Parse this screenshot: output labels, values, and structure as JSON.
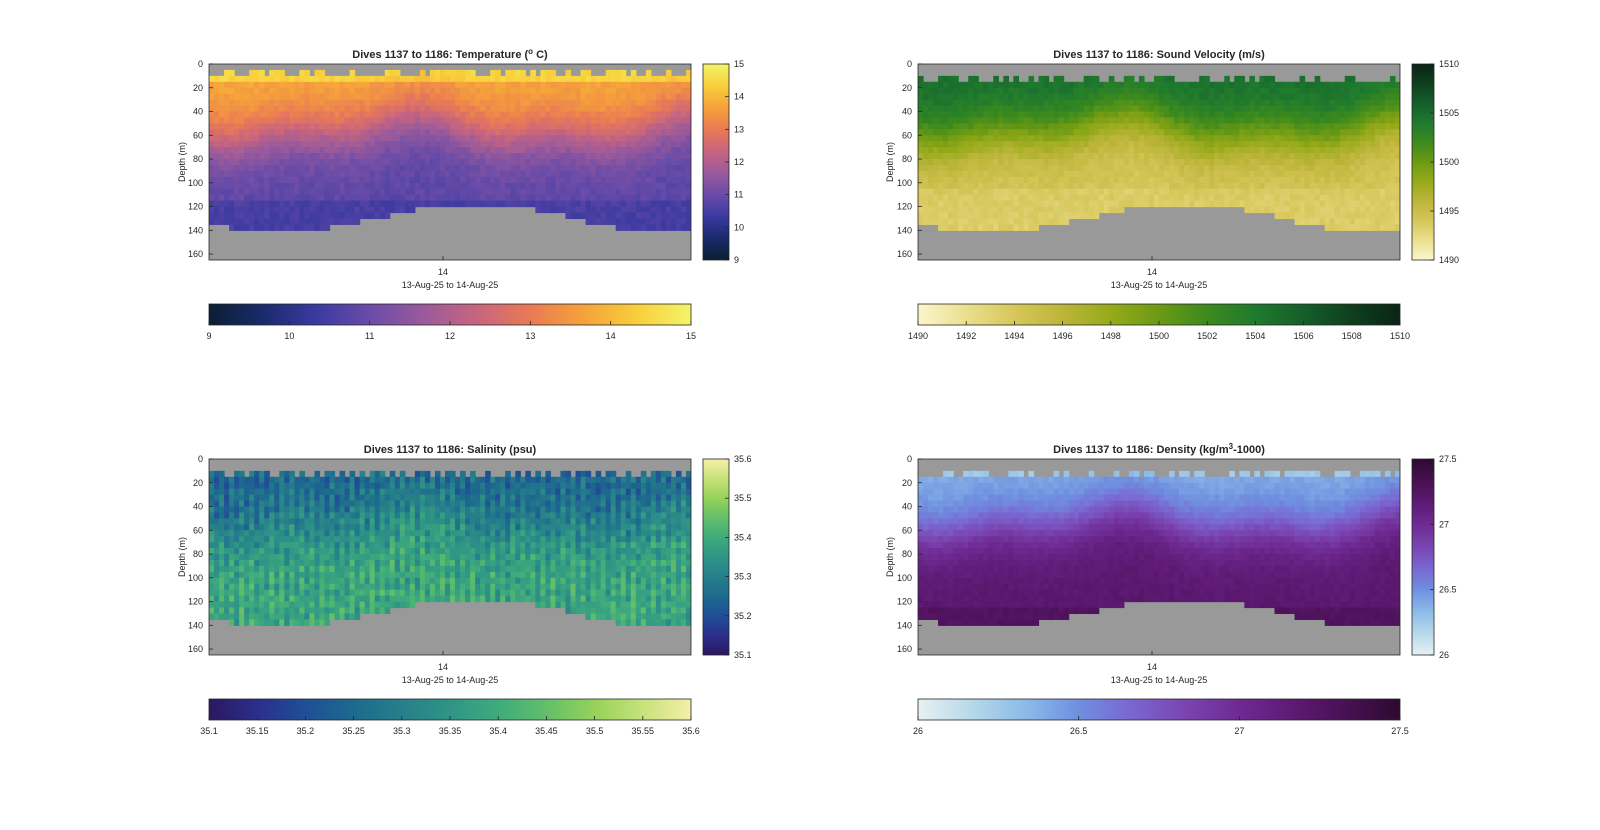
{
  "panels": [
    {
      "id": "temperature",
      "title_pre": "Dives 1137 to 1186: Temperature (",
      "title_sup": "o",
      "title_post": " C)",
      "ylabel": "Depth (m)",
      "xtick_label": "14",
      "xlabel": "13-Aug-25 to 14-Aug-25",
      "y_ticks": [
        "0",
        "20",
        "40",
        "60",
        "80",
        "100",
        "120",
        "140",
        "160"
      ],
      "side_ticks": [
        "15",
        "14",
        "13",
        "12",
        "11",
        "10",
        "9"
      ],
      "bottom_ticks": [
        "9",
        "10",
        "11",
        "12",
        "13",
        "14",
        "15"
      ],
      "colormap": [
        "#0a1f33",
        "#1a2a6c",
        "#3a3aa0",
        "#6a4ca8",
        "#9a5a9c",
        "#c8657e",
        "#e97a55",
        "#f6a23a",
        "#f8cf3a",
        "#f3f56a"
      ]
    },
    {
      "id": "sound-velocity",
      "title_pre": "Dives 1137 to 1186: Sound Velocity (m/s)",
      "title_sup": "",
      "title_post": "",
      "ylabel": "Depth (m)",
      "xtick_label": "14",
      "xlabel": "13-Aug-25 to 14-Aug-25",
      "y_ticks": [
        "0",
        "20",
        "40",
        "60",
        "80",
        "100",
        "120",
        "140",
        "160"
      ],
      "side_ticks": [
        "1510",
        "1505",
        "1500",
        "1495",
        "1490"
      ],
      "bottom_ticks": [
        "1490",
        "1492",
        "1494",
        "1496",
        "1498",
        "1500",
        "1502",
        "1504",
        "1506",
        "1508",
        "1510"
      ],
      "colormap": [
        "#fbf6cc",
        "#ebdf8e",
        "#d7c65a",
        "#bcb53a",
        "#96aa1a",
        "#6c9a14",
        "#3c8a1e",
        "#1f7a2e",
        "#155e2a",
        "#0f3f1e",
        "#0a2416"
      ]
    },
    {
      "id": "salinity",
      "title_pre": "Dives 1137 to 1186: Salinity (psu)",
      "title_sup": "",
      "title_post": "",
      "ylabel": "Depth (m)",
      "xtick_label": "14",
      "xlabel": "13-Aug-25 to 14-Aug-25",
      "y_ticks": [
        "0",
        "20",
        "40",
        "60",
        "80",
        "100",
        "120",
        "140",
        "160"
      ],
      "side_ticks": [
        "35.6",
        "35.5",
        "35.4",
        "35.3",
        "35.2",
        "35.1"
      ],
      "bottom_ticks": [
        "35.1",
        "35.15",
        "35.2",
        "35.25",
        "35.3",
        "35.35",
        "35.4",
        "35.45",
        "35.5",
        "35.55",
        "35.6"
      ],
      "colormap": [
        "#2a1860",
        "#2b2f8c",
        "#1f4f96",
        "#1d6a8e",
        "#267f8a",
        "#2f9586",
        "#3fab7c",
        "#62bf6a",
        "#96d25a",
        "#c7e27a",
        "#f5efa8"
      ]
    },
    {
      "id": "density",
      "title_pre": "Dives 1137 to 1186: Density (kg/m",
      "title_sup": "3",
      "title_post": "-1000)",
      "ylabel": "Depth (m)",
      "xtick_label": "14",
      "xlabel": "13-Aug-25 to 14-Aug-25",
      "y_ticks": [
        "0",
        "20",
        "40",
        "60",
        "80",
        "100",
        "120",
        "140",
        "160"
      ],
      "side_ticks": [
        "27.5",
        "27",
        "26.5",
        "26"
      ],
      "bottom_ticks": [
        "26",
        "26.5",
        "27",
        "27.5"
      ],
      "colormap": [
        "#e7f1f2",
        "#b6d9ea",
        "#8cbbe8",
        "#6f8fe0",
        "#7a66d0",
        "#7a44b0",
        "#6e2a92",
        "#5e1a74",
        "#481052",
        "#2c0a30"
      ]
    }
  ]
}
